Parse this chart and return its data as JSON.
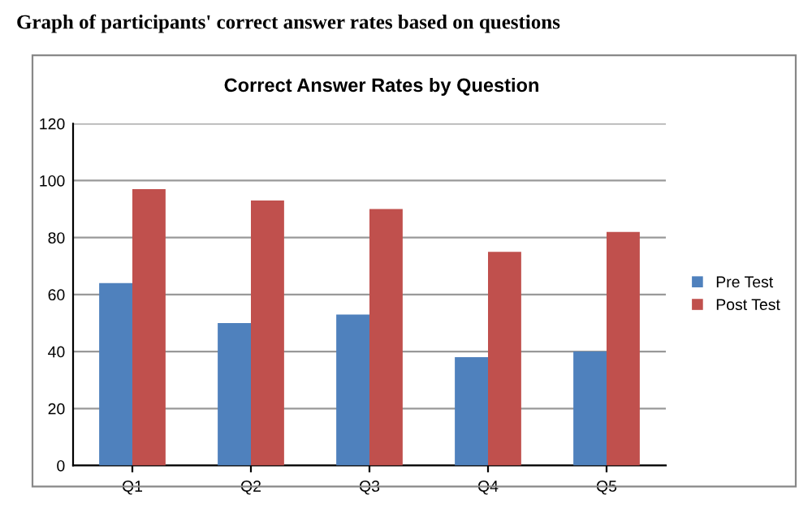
{
  "chart_data": {
    "type": "bar",
    "title": "Correct Answer Rates by Question",
    "annotations": [
      "Graph of participants' correct answer rates based on questions"
    ],
    "categories": [
      "Q1",
      "Q2",
      "Q3",
      "Q4",
      "Q5"
    ],
    "series": [
      {
        "name": "Pre Test",
        "color": "#4f81bd",
        "values": [
          64,
          50,
          53,
          38,
          40
        ]
      },
      {
        "name": "Post Test",
        "color": "#c0504d",
        "values": [
          97,
          93,
          90,
          75,
          82
        ]
      }
    ],
    "ylim": [
      0,
      120
    ],
    "yticks": [
      0,
      20,
      40,
      60,
      80,
      100,
      120
    ],
    "grid": "y",
    "legend": "right"
  }
}
